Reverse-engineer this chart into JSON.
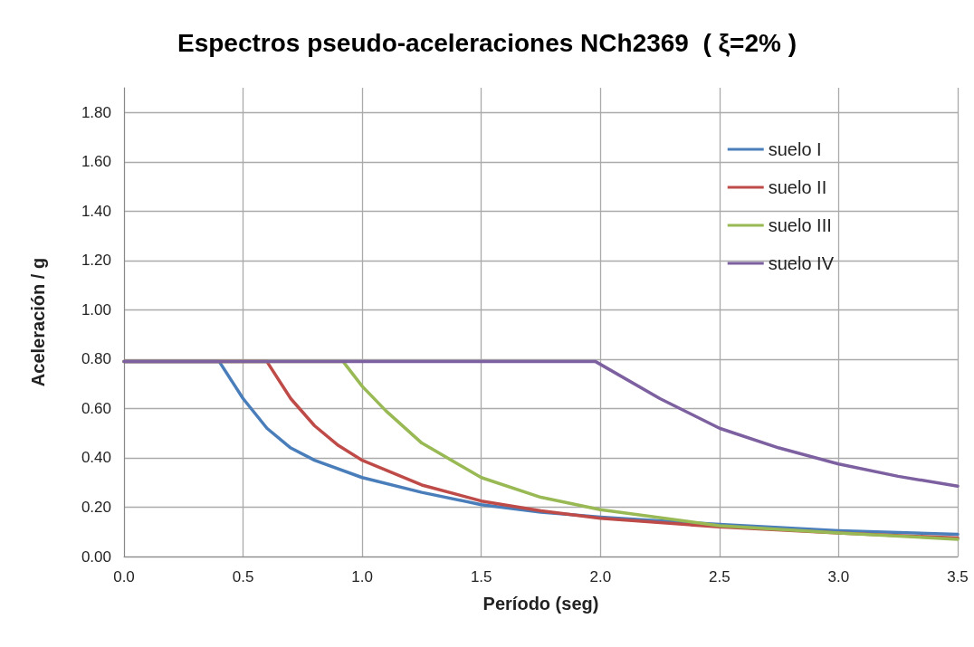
{
  "chart_data": {
    "type": "line",
    "title": "Espectros pseudo-aceleraciones NCh2369  ( ξ=2% )",
    "xlabel": "Período (seg)",
    "ylabel": "Aceleración / g",
    "xlim": [
      0,
      3.5
    ],
    "xticks": [
      {
        "value": 0,
        "label": "0.0"
      },
      {
        "value": 0.5,
        "label": "0.5"
      },
      {
        "value": 1,
        "label": "1.0"
      },
      {
        "value": 1.5,
        "label": "1.5"
      },
      {
        "value": 2,
        "label": "2.0"
      },
      {
        "value": 2.5,
        "label": "2.5"
      },
      {
        "value": 3,
        "label": "3.0"
      },
      {
        "value": 3.5,
        "label": "3.5"
      }
    ],
    "ylim": [
      0,
      1.9
    ],
    "yticks": [
      {
        "value": 0,
        "label": "0.00"
      },
      {
        "value": 0.2,
        "label": "0.20"
      },
      {
        "value": 0.4,
        "label": "0.40"
      },
      {
        "value": 0.6,
        "label": "0.60"
      },
      {
        "value": 0.8,
        "label": "0.80"
      },
      {
        "value": 1,
        "label": "1.00"
      },
      {
        "value": 1.2,
        "label": "1.20"
      },
      {
        "value": 1.4,
        "label": "1.40"
      },
      {
        "value": 1.6,
        "label": "1.60"
      },
      {
        "value": 1.8,
        "label": "1.80"
      }
    ],
    "grid": true,
    "legend": "top right",
    "marker": "none",
    "line_style": "solid",
    "series": [
      {
        "name": "suelo I",
        "color": "#4a7ebb",
        "x": [
          0,
          0.4,
          0.5,
          0.6,
          0.7,
          0.8,
          1.0,
          1.25,
          1.5,
          1.75,
          2.0,
          2.5,
          3.0,
          3.5
        ],
        "values": [
          0.79,
          0.79,
          0.64,
          0.52,
          0.44,
          0.39,
          0.32,
          0.26,
          0.21,
          0.18,
          0.16,
          0.13,
          0.105,
          0.09
        ]
      },
      {
        "name": "suelo II",
        "color": "#be4b48",
        "x": [
          0,
          0.6,
          0.7,
          0.8,
          0.9,
          1.0,
          1.25,
          1.5,
          1.75,
          2.0,
          2.5,
          3.0,
          3.5
        ],
        "values": [
          0.79,
          0.79,
          0.64,
          0.53,
          0.45,
          0.39,
          0.29,
          0.225,
          0.185,
          0.155,
          0.12,
          0.095,
          0.075
        ]
      },
      {
        "name": "suelo III",
        "color": "#98b954",
        "x": [
          0,
          0.92,
          1.0,
          1.1,
          1.25,
          1.5,
          1.75,
          2.0,
          2.5,
          3.0,
          3.5
        ],
        "values": [
          0.79,
          0.79,
          0.69,
          0.59,
          0.46,
          0.32,
          0.24,
          0.19,
          0.125,
          0.095,
          0.07
        ]
      },
      {
        "name": "suelo IV",
        "color": "#7d60a0",
        "x": [
          0,
          1.98,
          2.25,
          2.5,
          2.75,
          3.0,
          3.25,
          3.5
        ],
        "values": [
          0.79,
          0.79,
          0.64,
          0.52,
          0.44,
          0.375,
          0.325,
          0.285
        ]
      }
    ]
  }
}
